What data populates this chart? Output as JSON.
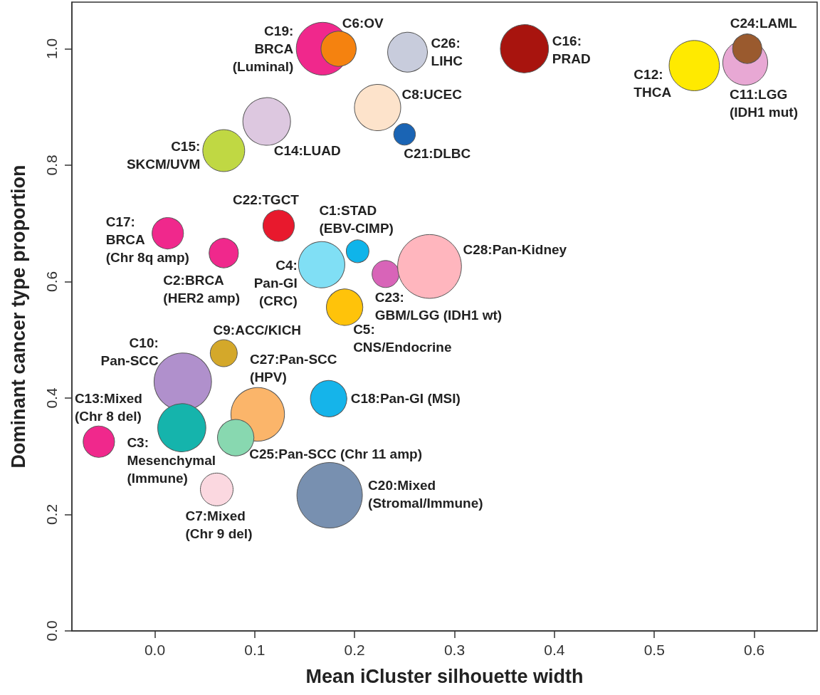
{
  "chart_data": {
    "type": "bubble",
    "xlabel": "Mean iCluster silhouette width",
    "ylabel": "Dominant cancer type proportion",
    "xlim": [
      -0.083,
      0.663
    ],
    "ylim": [
      0,
      1.08
    ],
    "xticks": [
      {
        "value": 0,
        "label": "0.0"
      },
      {
        "value": 0.1,
        "label": "0.1"
      },
      {
        "value": 0.2,
        "label": "0.2"
      },
      {
        "value": 0.3,
        "label": "0.3"
      },
      {
        "value": 0.4,
        "label": "0.4"
      },
      {
        "value": 0.5,
        "label": "0.5"
      },
      {
        "value": 0.6,
        "label": "0.6"
      }
    ],
    "yticks": [
      {
        "value": 0,
        "label": "0.0"
      },
      {
        "value": 0.2,
        "label": "0.2"
      },
      {
        "value": 0.4,
        "label": "0.4"
      },
      {
        "value": 0.6,
        "label": "0.6"
      },
      {
        "value": 0.8,
        "label": "0.8"
      },
      {
        "value": 1.0,
        "label": "1.0"
      }
    ],
    "marker": "circle",
    "series": [
      {
        "x": [
          0.168,
          0.184,
          0.253,
          0.37,
          0.54,
          0.591,
          0.593,
          0.223,
          0.25,
          0.112,
          0.069,
          0.124,
          0.013,
          0.069,
          0.203,
          0.167,
          0.231,
          0.275,
          0.19,
          0.069,
          0.028,
          0.103,
          0.174,
          -0.056,
          0.027,
          0.081,
          0.062,
          0.175
        ],
        "values": [
          1.0,
          1.0,
          0.994,
          1.0,
          0.971,
          0.976,
          1.0,
          0.899,
          0.853,
          0.875,
          0.825,
          0.696,
          0.683,
          0.649,
          0.652,
          0.629,
          0.613,
          0.626,
          0.556,
          0.477,
          0.428,
          0.372,
          0.399,
          0.325,
          0.349,
          0.332,
          0.243,
          0.233
        ],
        "sizes": [
          0.65,
          0.29,
          0.37,
          0.54,
          0.59,
          0.47,
          0.2,
          0.5,
          0.11,
          0.53,
          0.41,
          0.23,
          0.23,
          0.2,
          0.12,
          0.5,
          0.17,
          0.95,
          0.31,
          0.17,
          0.77,
          0.67,
          0.31,
          0.23,
          0.54,
          0.31,
          0.25,
          1.0
        ],
        "colors": [
          "#f0288c",
          "#f5820f",
          "#c8ccdc",
          "#a8140e",
          "#ffea00",
          "#e8a8d4",
          "#9a5a2e",
          "#fde3cb",
          "#1a64b4",
          "#ddc8e0",
          "#c0d843",
          "#e8192d",
          "#f0288c",
          "#f0288c",
          "#0fb4ea",
          "#80dff5",
          "#d864b8",
          "#ffb6be",
          "#ffc30a",
          "#d4a82a",
          "#b090cc",
          "#fbb56a",
          "#15b4ea",
          "#f0288c",
          "#15b4ac",
          "#88d8b0",
          "#fbd8e0",
          "#7890b0"
        ]
      }
    ],
    "annotations": [
      {
        "text": "C19:\nBRCA\n(Luminal)",
        "x": 0.168,
        "y": 1.0
      },
      {
        "text": "C6:OV",
        "x": 0.184,
        "y": 1.0
      },
      {
        "text": "C26:\nLIHC",
        "x": 0.253,
        "y": 0.994
      },
      {
        "text": "C16:\nPRAD",
        "x": 0.37,
        "y": 1.0
      },
      {
        "text": "C12:\nTHCA",
        "x": 0.54,
        "y": 0.971
      },
      {
        "text": "C11:LGG\n(IDH1 mut)",
        "x": 0.591,
        "y": 0.976
      },
      {
        "text": "C24:LAML",
        "x": 0.593,
        "y": 1.0
      },
      {
        "text": "C8:UCEC",
        "x": 0.223,
        "y": 0.899
      },
      {
        "text": "C21:DLBC",
        "x": 0.25,
        "y": 0.853
      },
      {
        "text": "C14:LUAD",
        "x": 0.112,
        "y": 0.875
      },
      {
        "text": "C15:\nSKCM/UVM",
        "x": 0.069,
        "y": 0.825
      },
      {
        "text": "C22:TGCT",
        "x": 0.124,
        "y": 0.696
      },
      {
        "text": "C17:\nBRCA\n(Chr 8q amp)",
        "x": 0.013,
        "y": 0.683
      },
      {
        "text": "C2:BRCA\n(HER2 amp)",
        "x": 0.069,
        "y": 0.649
      },
      {
        "text": "C1:STAD\n(EBV-CIMP)",
        "x": 0.203,
        "y": 0.652
      },
      {
        "text": "C4:\nPan-GI\n(CRC)",
        "x": 0.167,
        "y": 0.629
      },
      {
        "text": "C23:\nGBM/LGG (IDH1 wt)",
        "x": 0.231,
        "y": 0.613
      },
      {
        "text": "C28:Pan-Kidney",
        "x": 0.275,
        "y": 0.626
      },
      {
        "text": "C5:\nCNS/Endocrine",
        "x": 0.19,
        "y": 0.556
      },
      {
        "text": "C9:ACC/KICH",
        "x": 0.069,
        "y": 0.477
      },
      {
        "text": "C10:\nPan-SCC",
        "x": 0.028,
        "y": 0.428
      },
      {
        "text": "C27:Pan-SCC\n(HPV)",
        "x": 0.103,
        "y": 0.372
      },
      {
        "text": "C18:Pan-GI (MSI)",
        "x": 0.174,
        "y": 0.399
      },
      {
        "text": "C13:Mixed\n(Chr 8 del)",
        "x": -0.056,
        "y": 0.325
      },
      {
        "text": "C3:\nMesenchymal\n(Immune)",
        "x": 0.027,
        "y": 0.349
      },
      {
        "text": "C25:Pan-SCC (Chr 11 amp)",
        "x": 0.081,
        "y": 0.332
      },
      {
        "text": "C7:Mixed\n(Chr 9 del)",
        "x": 0.062,
        "y": 0.243
      },
      {
        "text": "C20:Mixed\n(Stromal/Immune)",
        "x": 0.175,
        "y": 0.233
      }
    ]
  }
}
